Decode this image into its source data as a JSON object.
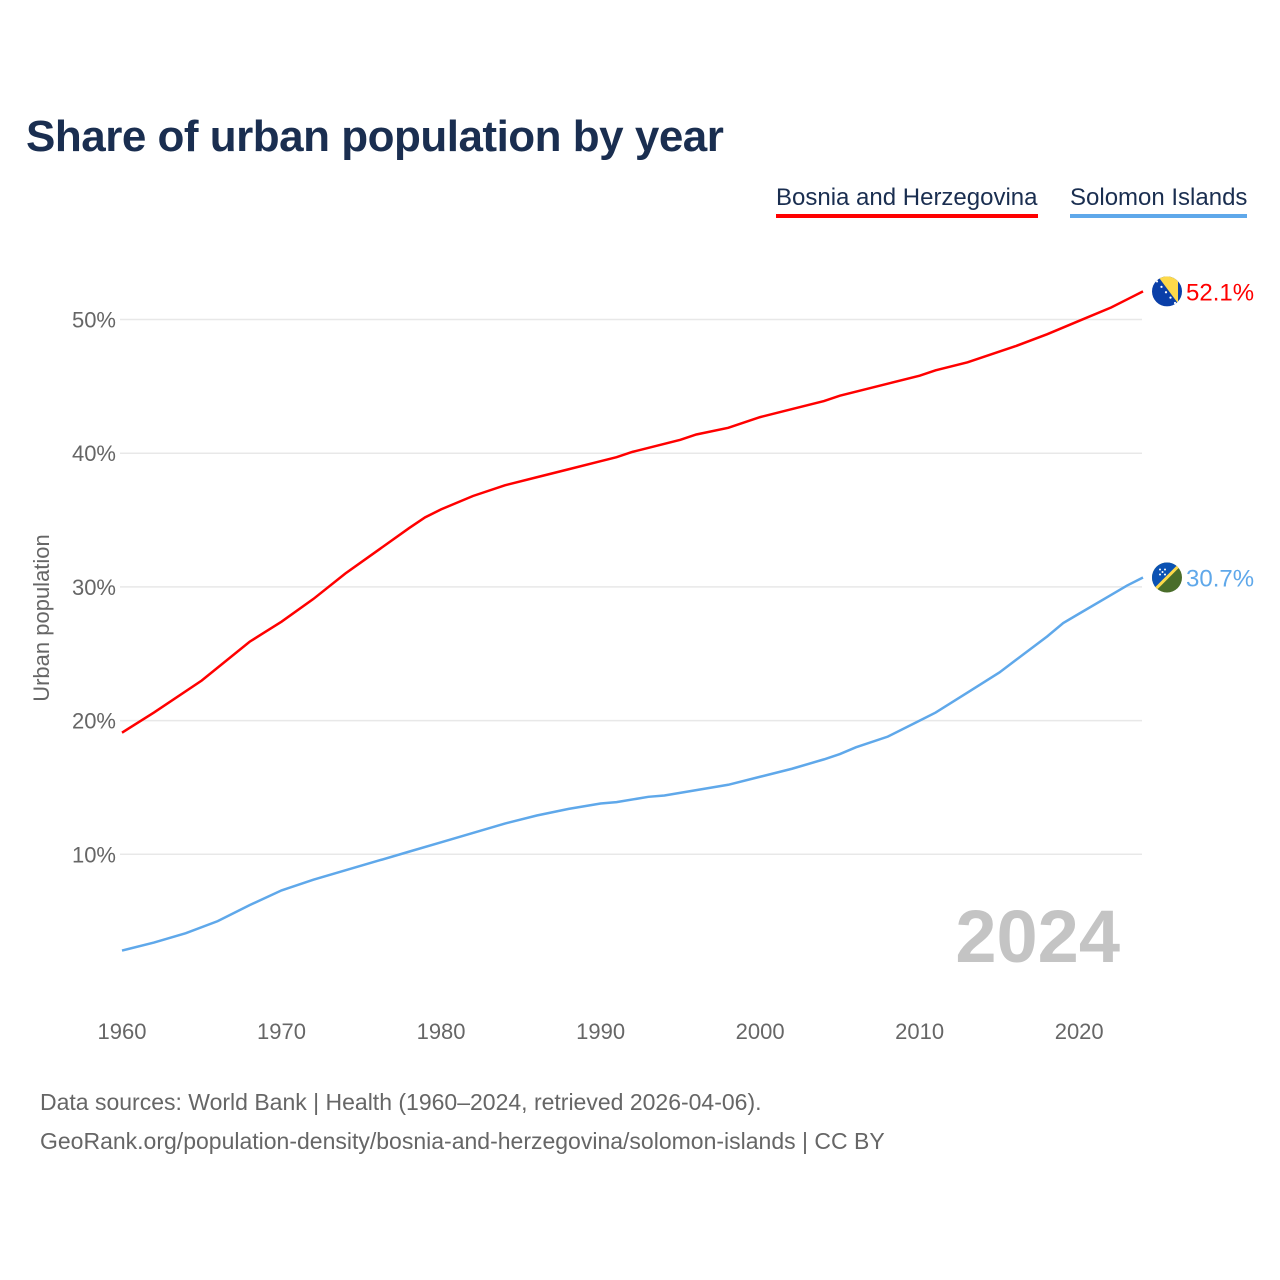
{
  "title": "Share of urban population by year",
  "legend": [
    {
      "label": "Bosnia and Herzegovina",
      "color": "#ff0000"
    },
    {
      "label": "Solomon Islands",
      "color": "#5fa8ea"
    }
  ],
  "year_watermark": "2024",
  "source_line1": "Data sources: World Bank | Health (1960–2024, retrieved 2026-04-06).",
  "source_line2": "GeoRank.org/population-density/bosnia-and-herzegovina/solomon-islands | CC BY",
  "chart_data": {
    "type": "line",
    "title": "Share of urban population by year",
    "xlabel": "",
    "ylabel": "Urban population",
    "xlim": [
      1960,
      2024
    ],
    "ylim": [
      0,
      55
    ],
    "x_ticks": [
      1960,
      1970,
      1980,
      1990,
      2000,
      2010,
      2020
    ],
    "y_ticks": [
      10,
      20,
      30,
      40,
      50
    ],
    "y_tick_labels": [
      "10%",
      "20%",
      "30%",
      "40%",
      "50%"
    ],
    "grid": true,
    "legend_position": "top-right",
    "series": [
      {
        "name": "Bosnia and Herzegovina",
        "color": "#ff0000",
        "end_label": "52.1%",
        "flag": "bosnia-flag",
        "x": [
          1960,
          1962,
          1965,
          1968,
          1970,
          1972,
          1974,
          1976,
          1978,
          1979,
          1980,
          1982,
          1984,
          1986,
          1988,
          1990,
          1991,
          1992,
          1995,
          1996,
          1998,
          2000,
          2002,
          2004,
          2005,
          2008,
          2010,
          2011,
          2013,
          2015,
          2016,
          2018,
          2020,
          2022,
          2023,
          2024
        ],
        "y": [
          19.1,
          20.6,
          23.0,
          25.9,
          27.4,
          29.1,
          31.0,
          32.7,
          34.4,
          35.2,
          35.8,
          36.8,
          37.6,
          38.2,
          38.8,
          39.4,
          39.7,
          40.1,
          41.0,
          41.4,
          41.9,
          42.7,
          43.3,
          43.9,
          44.3,
          45.2,
          45.8,
          46.2,
          46.8,
          47.6,
          48.0,
          48.9,
          49.9,
          50.9,
          51.5,
          52.1
        ]
      },
      {
        "name": "Solomon Islands",
        "color": "#5fa8ea",
        "end_label": "30.7%",
        "flag": "solomon-islands-flag",
        "x": [
          1960,
          1962,
          1964,
          1966,
          1968,
          1970,
          1972,
          1974,
          1976,
          1978,
          1980,
          1982,
          1984,
          1986,
          1988,
          1990,
          1991,
          1993,
          1994,
          1996,
          1998,
          2000,
          2002,
          2004,
          2005,
          2006,
          2008,
          2010,
          2011,
          2013,
          2015,
          2016,
          2018,
          2019,
          2020,
          2022,
          2023,
          2024
        ],
        "y": [
          2.8,
          3.4,
          4.1,
          5.0,
          6.2,
          7.3,
          8.1,
          8.8,
          9.5,
          10.2,
          10.9,
          11.6,
          12.3,
          12.9,
          13.4,
          13.8,
          13.9,
          14.3,
          14.4,
          14.8,
          15.2,
          15.8,
          16.4,
          17.1,
          17.5,
          18.0,
          18.8,
          20.0,
          20.6,
          22.1,
          23.6,
          24.5,
          26.3,
          27.3,
          28.0,
          29.4,
          30.1,
          30.7
        ]
      }
    ]
  }
}
